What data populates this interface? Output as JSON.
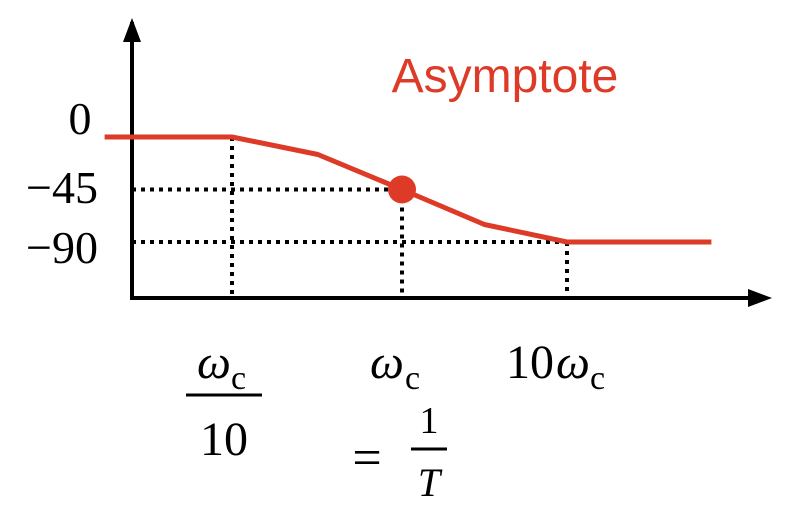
{
  "colors": {
    "asymptote": "#dd3a27",
    "axis": "#000000",
    "guides": "#000000"
  },
  "labels": {
    "asymptote": "Asymptote",
    "y_tick_0": "0",
    "y_tick_45": "−45",
    "y_tick_90": "−90",
    "omega_symbol": "ω",
    "subscript_c": "c",
    "ten": "10",
    "prefix_10": "10",
    "equals": "=",
    "one": "1",
    "T": "T"
  },
  "chart_data": {
    "type": "line",
    "x_scale": "log",
    "x_ticks": [
      "ωc/10",
      "ωc",
      "10ωc"
    ],
    "y_ticks": [
      0,
      -45,
      -90
    ],
    "series": [
      {
        "points": [
          {
            "x": 0.0178,
            "y": 0
          },
          {
            "x": 0.1,
            "y": 0
          },
          {
            "x": 0.32,
            "y": -15
          },
          {
            "x": 1,
            "y": -45
          },
          {
            "x": 3.16,
            "y": -75
          },
          {
            "x": 10,
            "y": -90
          },
          {
            "x": 75,
            "y": -90
          }
        ]
      }
    ],
    "marker": {
      "x": 1,
      "y": -45
    },
    "guides": [
      {
        "type": "vertical",
        "x": 0.1,
        "from_y": 0
      },
      {
        "type": "vertical",
        "x": 1,
        "from_y": -45
      },
      {
        "type": "vertical",
        "x": 10,
        "from_y": -90
      },
      {
        "type": "horizontal",
        "y": -45,
        "to_x": 1
      },
      {
        "type": "horizontal",
        "y": -90,
        "to_x": 10
      }
    ]
  }
}
